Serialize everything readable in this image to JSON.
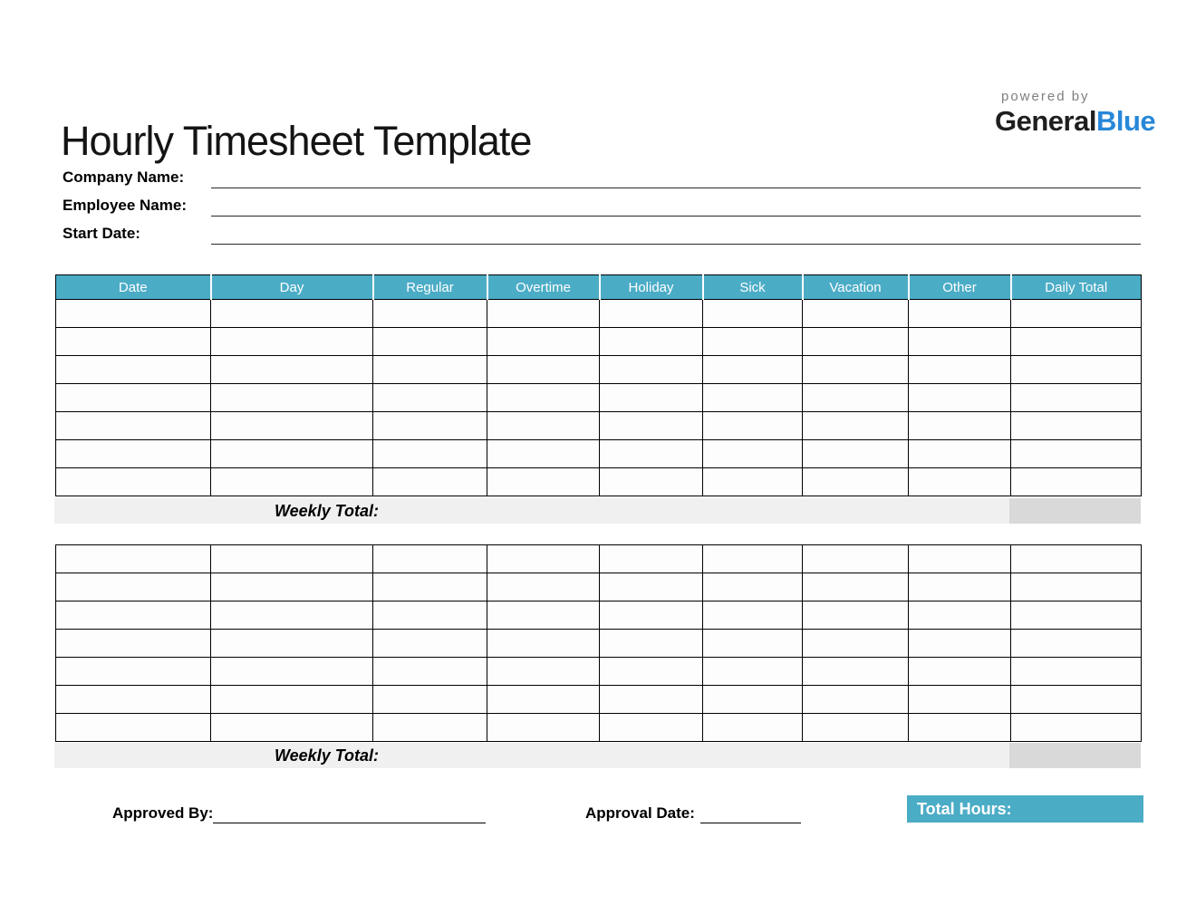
{
  "header": {
    "title": "Hourly Timesheet Template",
    "brand": {
      "powered_by": "powered by",
      "name_dark": "General",
      "name_accent": "Blue"
    }
  },
  "fields": [
    {
      "label": "Company Name:",
      "value": ""
    },
    {
      "label": "Employee Name:",
      "value": ""
    },
    {
      "label": "Start Date:",
      "value": ""
    }
  ],
  "table": {
    "columns": [
      "Date",
      "Day",
      "Regular",
      "Overtime",
      "Holiday",
      "Sick",
      "Vacation",
      "Other",
      "Daily Total"
    ],
    "weeks": [
      {
        "rows": 7,
        "weekly_total_label": "Weekly Total:",
        "weekly_total_value": ""
      },
      {
        "rows": 7,
        "weekly_total_label": "Weekly Total:",
        "weekly_total_value": ""
      }
    ]
  },
  "footer": {
    "approved_by_label": "Approved By:",
    "approved_by_value": "",
    "approval_date_label": "Approval Date:",
    "approval_date_value": "",
    "total_hours_label": "Total Hours:",
    "total_hours_value": ""
  },
  "colors": {
    "accent_teal": "#4BACC6",
    "brand_blue": "#2787D8",
    "weekly_strip_gray": "#F0F0F0",
    "weekly_total_cell_gray": "#D9D9D9",
    "table_border": "#000000"
  }
}
